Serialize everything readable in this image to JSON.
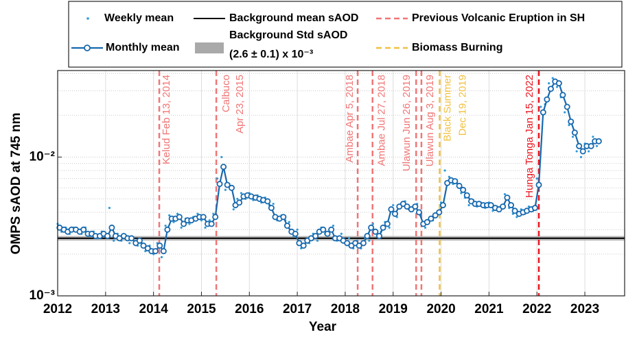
{
  "chart_data": {
    "type": "line",
    "xlabel": "Year",
    "ylabel": "OMPS sAOD at 745 nm",
    "xlim": [
      2012,
      2023.83
    ],
    "ylim": [
      0.001,
      0.042
    ],
    "log_y": true,
    "grid": true,
    "minor_grid": true,
    "xticks": [
      2012,
      2013,
      2014,
      2015,
      2016,
      2017,
      2018,
      2019,
      2020,
      2021,
      2022,
      2023
    ],
    "yticks": [
      {
        "value": 0.001,
        "label": "10⁻³"
      },
      {
        "value": 0.01,
        "label": "10⁻²"
      }
    ],
    "series": [
      {
        "name": "Weekly mean",
        "color": "#2f9bd8",
        "marker": "dot",
        "x": [
          2012.0,
          2012.08,
          2012.17,
          2012.25,
          2012.33,
          2012.42,
          2012.5,
          2012.58,
          2012.67,
          2012.75,
          2012.83,
          2012.92,
          2013.0,
          2013.08,
          2013.17,
          2013.25,
          2013.33,
          2013.42,
          2013.5,
          2013.58,
          2013.67,
          2013.75,
          2013.83,
          2013.92,
          2014.0,
          2014.08,
          2014.17,
          2014.25,
          2014.33,
          2014.42,
          2014.5,
          2014.58,
          2014.67,
          2014.75,
          2014.83,
          2014.92,
          2015.0,
          2015.08,
          2015.17,
          2015.25,
          2015.33,
          2015.42,
          2015.5,
          2015.58,
          2015.67,
          2015.75,
          2015.83,
          2015.92,
          2016.0,
          2016.08,
          2016.17,
          2016.25,
          2016.33,
          2016.42,
          2016.5,
          2016.58,
          2016.67,
          2016.75,
          2016.83,
          2016.92,
          2017.0,
          2017.08,
          2017.17,
          2017.25,
          2017.33,
          2017.42,
          2017.5,
          2017.58,
          2017.67,
          2017.75,
          2017.83,
          2017.92,
          2018.0,
          2018.08,
          2018.17,
          2018.25,
          2018.33,
          2018.42,
          2018.5,
          2018.58,
          2018.67,
          2018.75,
          2018.83,
          2018.92,
          2019.0,
          2019.08,
          2019.17,
          2019.25,
          2019.33,
          2019.42,
          2019.5,
          2019.58,
          2019.67,
          2019.75,
          2019.83,
          2019.92,
          2020.0,
          2020.08,
          2020.17,
          2020.25,
          2020.33,
          2020.42,
          2020.5,
          2020.58,
          2020.67,
          2020.75,
          2020.83,
          2020.92,
          2021.0,
          2021.08,
          2021.17,
          2021.25,
          2021.33,
          2021.42,
          2021.5,
          2021.58,
          2021.67,
          2021.75,
          2021.83,
          2021.92,
          2022.0,
          2022.08,
          2022.17,
          2022.25,
          2022.33,
          2022.42,
          2022.5,
          2022.58,
          2022.67,
          2022.75,
          2022.83,
          2022.92,
          2023.0,
          2023.08,
          2023.17,
          2023.25
        ],
        "values": [
          0.0033,
          0.0029,
          0.0031,
          0.0028,
          0.0031,
          0.003,
          0.0028,
          0.0031,
          0.0027,
          0.0029,
          0.0026,
          0.0029,
          0.0028,
          0.0043,
          0.0025,
          0.0028,
          0.0025,
          0.0027,
          0.0024,
          0.0026,
          0.0023,
          0.0024,
          0.0021,
          0.0023,
          0.002,
          0.0024,
          0.0019,
          0.0032,
          0.0038,
          0.0034,
          0.0039,
          0.0031,
          0.0036,
          0.0033,
          0.0037,
          0.0039,
          0.0035,
          0.0031,
          0.0035,
          0.0039,
          0.007,
          0.01,
          0.0058,
          0.0064,
          0.0042,
          0.005,
          0.0055,
          0.005,
          0.0055,
          0.0049,
          0.0053,
          0.0047,
          0.0051,
          0.0045,
          0.0046,
          0.0035,
          0.0038,
          0.0035,
          0.0034,
          0.0027,
          0.003,
          0.0022,
          0.0025,
          0.0024,
          0.0028,
          0.0025,
          0.0031,
          0.0028,
          0.003,
          0.0032,
          0.0025,
          0.0028,
          0.0024,
          0.0026,
          0.0022,
          0.0025,
          0.0022,
          0.0026,
          0.0025,
          0.0033,
          0.0027,
          0.0029,
          0.0034,
          0.0031,
          0.0045,
          0.0037,
          0.0046,
          0.0048,
          0.0042,
          0.0044,
          0.0046,
          0.0038,
          0.0031,
          0.0036,
          0.0035,
          0.004,
          0.0047,
          0.008,
          0.0072,
          0.0064,
          0.0065,
          0.0055,
          0.0051,
          0.0045,
          0.0049,
          0.0044,
          0.0047,
          0.0043,
          0.0047,
          0.0041,
          0.0044,
          0.0042,
          0.0054,
          0.0043,
          0.0039,
          0.0037,
          0.0042,
          0.0039,
          0.0044,
          0.0041,
          0.007,
          0.023,
          0.024,
          0.034,
          0.037,
          0.032,
          0.027,
          0.021,
          0.017,
          0.014,
          0.011,
          0.01,
          0.0125,
          0.011,
          0.014,
          0.012
        ]
      },
      {
        "name": "Monthly mean",
        "color": "#1768ad",
        "marker": "circle",
        "x": [
          2012.04,
          2012.13,
          2012.21,
          2012.29,
          2012.38,
          2012.46,
          2012.54,
          2012.63,
          2012.71,
          2012.79,
          2012.88,
          2012.96,
          2013.04,
          2013.13,
          2013.21,
          2013.29,
          2013.38,
          2013.46,
          2013.54,
          2013.63,
          2013.71,
          2013.79,
          2013.88,
          2013.96,
          2014.04,
          2014.13,
          2014.21,
          2014.29,
          2014.38,
          2014.46,
          2014.54,
          2014.63,
          2014.71,
          2014.79,
          2014.88,
          2014.96,
          2015.04,
          2015.13,
          2015.21,
          2015.29,
          2015.38,
          2015.46,
          2015.54,
          2015.63,
          2015.71,
          2015.79,
          2015.88,
          2015.96,
          2016.04,
          2016.13,
          2016.21,
          2016.29,
          2016.38,
          2016.46,
          2016.54,
          2016.63,
          2016.71,
          2016.79,
          2016.88,
          2016.96,
          2017.04,
          2017.13,
          2017.21,
          2017.29,
          2017.38,
          2017.46,
          2017.54,
          2017.63,
          2017.71,
          2017.79,
          2017.88,
          2017.96,
          2018.04,
          2018.13,
          2018.21,
          2018.29,
          2018.38,
          2018.46,
          2018.54,
          2018.63,
          2018.71,
          2018.79,
          2018.88,
          2018.96,
          2019.04,
          2019.13,
          2019.21,
          2019.29,
          2019.38,
          2019.46,
          2019.54,
          2019.63,
          2019.71,
          2019.79,
          2019.88,
          2019.96,
          2020.04,
          2020.13,
          2020.21,
          2020.29,
          2020.38,
          2020.46,
          2020.54,
          2020.63,
          2020.71,
          2020.79,
          2020.88,
          2020.96,
          2021.04,
          2021.13,
          2021.21,
          2021.29,
          2021.38,
          2021.46,
          2021.54,
          2021.63,
          2021.71,
          2021.79,
          2021.88,
          2021.96,
          2022.04,
          2022.13,
          2022.21,
          2022.29,
          2022.38,
          2022.46,
          2022.54,
          2022.63,
          2022.71,
          2022.79,
          2022.88,
          2022.96,
          2023.04,
          2023.13,
          2023.21,
          2023.29
        ],
        "values": [
          0.0031,
          0.003,
          0.0029,
          0.003,
          0.003,
          0.0029,
          0.003,
          0.0028,
          0.0028,
          0.0027,
          0.0027,
          0.0028,
          0.0027,
          0.0031,
          0.0027,
          0.0026,
          0.0027,
          0.0026,
          0.0026,
          0.0024,
          0.0025,
          0.0023,
          0.0022,
          0.0021,
          0.0021,
          0.0023,
          0.0021,
          0.003,
          0.0036,
          0.0036,
          0.0037,
          0.0033,
          0.0035,
          0.0035,
          0.0036,
          0.0037,
          0.0037,
          0.0033,
          0.0033,
          0.0037,
          0.0064,
          0.0085,
          0.0063,
          0.006,
          0.0045,
          0.0047,
          0.0052,
          0.0053,
          0.0052,
          0.0051,
          0.005,
          0.0049,
          0.0048,
          0.0043,
          0.0037,
          0.0036,
          0.0037,
          0.0032,
          0.0029,
          0.0028,
          0.0024,
          0.0023,
          0.0025,
          0.0026,
          0.0027,
          0.0029,
          0.003,
          0.0028,
          0.003,
          0.0026,
          0.0026,
          0.0025,
          0.0024,
          0.0023,
          0.0024,
          0.0023,
          0.0024,
          0.0027,
          0.0031,
          0.0029,
          0.0027,
          0.0031,
          0.0033,
          0.0042,
          0.0039,
          0.0044,
          0.0046,
          0.0044,
          0.0042,
          0.0044,
          0.004,
          0.0033,
          0.0034,
          0.0036,
          0.0038,
          0.004,
          0.0045,
          0.0065,
          0.0068,
          0.0067,
          0.0062,
          0.0058,
          0.0053,
          0.0048,
          0.0046,
          0.0046,
          0.0045,
          0.0045,
          0.0045,
          0.0043,
          0.0042,
          0.0044,
          0.0051,
          0.0045,
          0.0041,
          0.0039,
          0.004,
          0.0041,
          0.0042,
          0.0043,
          0.0063,
          0.021,
          0.026,
          0.031,
          0.035,
          0.034,
          0.028,
          0.023,
          0.018,
          0.015,
          0.012,
          0.011,
          0.012,
          0.012,
          0.013,
          0.013
        ]
      }
    ],
    "reference": {
      "name": "Background mean sAOD",
      "value": 0.0026,
      "color": "#000000"
    },
    "band": {
      "name": [
        "Background Std sAOD",
        "(2.6 ± 0.1) x 10⁻³"
      ],
      "low": 0.0025,
      "high": 0.0027,
      "color": "#a9a9a9"
    },
    "event_kinds": [
      {
        "name": "Previous Volcanic Eruption in SH",
        "color": "#f07575"
      },
      {
        "name": "Biomass Burning",
        "color": "#f0c040"
      }
    ],
    "events": [
      {
        "x": 2014.12,
        "label": [
          "Kelud Feb 13, 2014"
        ],
        "color": "#f07575"
      },
      {
        "x": 2015.31,
        "label": [
          "Calbuco",
          "Apr 23, 2015"
        ],
        "color": "#f07575"
      },
      {
        "x": 2018.26,
        "label": [
          "Ambae Apr 5, 2018"
        ],
        "color": "#f07575"
      },
      {
        "x": 2018.57,
        "label": [
          "Ambae Jul 27, 2018"
        ],
        "color": "#f07575"
      },
      {
        "x": 2019.48,
        "label": [
          "Ulawun Jun 26, 2019"
        ],
        "color": "#f07575"
      },
      {
        "x": 2019.59,
        "label": [
          "Ulawun Aug 3, 2019"
        ],
        "color": "#f07575"
      },
      {
        "x": 2019.97,
        "label": [
          "Black Summer",
          "Dec 19, 2019"
        ],
        "color": "#f0c040"
      },
      {
        "x": 2022.04,
        "label": [
          "Hunga Tonga Jan 15, 2022"
        ],
        "color": "#e8141e"
      }
    ]
  }
}
